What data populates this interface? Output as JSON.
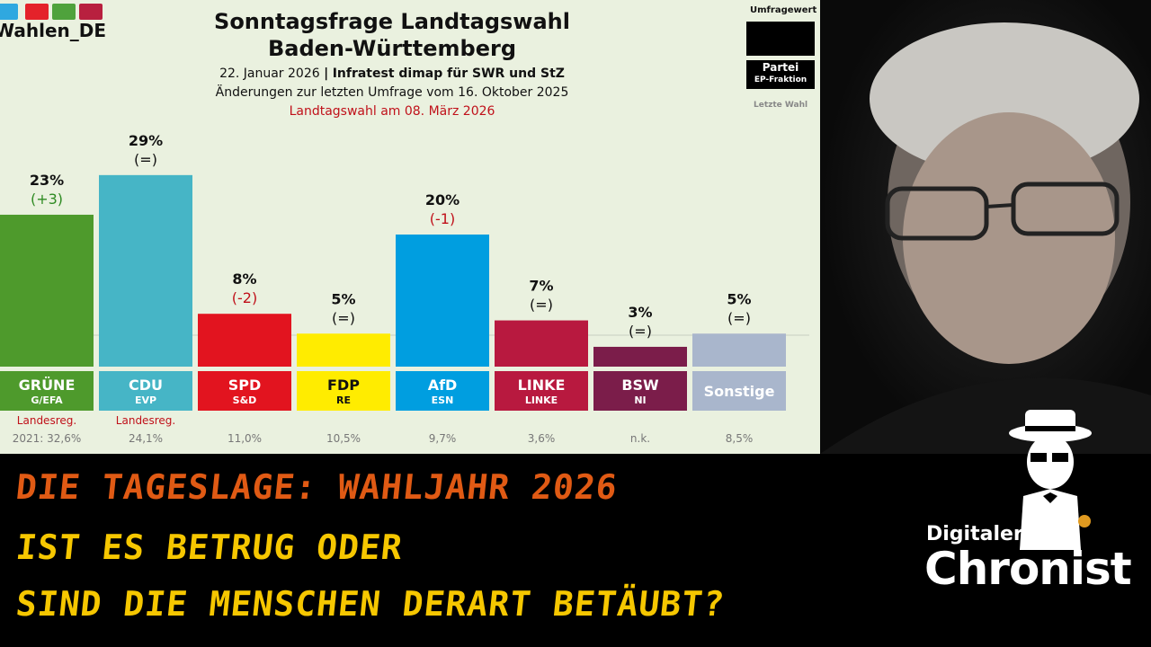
{
  "logo": {
    "text": "Wahlen_DE",
    "bar_colors": [
      "#2fa8e0",
      "#e4222a",
      "#4fa23c",
      "#b8203f"
    ]
  },
  "header": {
    "title_line1": "Sonntagsfrage Landtagswahl",
    "title_line2": "Baden-Württemberg",
    "date": "22. Januar 2026",
    "separator": "|",
    "pollster": "Infratest dimap für SWR und StZ",
    "changes_note": "Änderungen zur letzten Umfrage vom 16. Oktober 2025",
    "election_date": "Landtagswahl am 08. März 2026"
  },
  "legend": {
    "umfragewert": "Umfragewert",
    "partei": "Partei",
    "ep_fraktion": "EP-Fraktion",
    "letzte_wahl": "Letzte Wahl"
  },
  "chart_data": {
    "type": "bar",
    "title": "Sonntagsfrage Landtagswahl Baden-Württemberg",
    "ylim": [
      0,
      100
    ],
    "categories": [
      "GRÜNE",
      "CDU",
      "SPD",
      "FDP",
      "AfD",
      "LINKE",
      "BSW",
      "Sonstige"
    ],
    "values": [
      23,
      29,
      8,
      5,
      20,
      7,
      3,
      5
    ],
    "value_labels": [
      "23%",
      "29%",
      "8%",
      "5%",
      "20%",
      "7%",
      "3%",
      "5%"
    ],
    "change_labels": [
      "(+3)",
      "(=)",
      "(-2)",
      "(=)",
      "(-1)",
      "(=)",
      "(=)",
      "(=)"
    ],
    "change_values": [
      3,
      0,
      -2,
      0,
      -1,
      0,
      0,
      0
    ],
    "ep_fraktion": [
      "G/EFA",
      "EVP",
      "S&D",
      "RE",
      "ESN",
      "LINKE",
      "NI",
      ""
    ],
    "note": [
      "Landesreg.",
      "Landesreg.",
      "",
      "",
      "",
      "",
      "",
      ""
    ],
    "last_election": [
      "2021: 32,6%",
      "24,1%",
      "11,0%",
      "10,5%",
      "9,7%",
      "3,6%",
      "n.k.",
      "8,5%"
    ],
    "colors": [
      "#4e9a2c",
      "#46b5c6",
      "#e2141f",
      "#ffec00",
      "#009ee0",
      "#b8193f",
      "#7b1d4a",
      "#a9b6cc"
    ],
    "label_text_colors": [
      "#fff",
      "#fff",
      "#fff",
      "#111",
      "#fff",
      "#fff",
      "#fff",
      "#fff"
    ],
    "change_colors": {
      "up": "#2e8a22",
      "down": "#c0111a",
      "same": "#111"
    }
  },
  "banner": {
    "line1": "DIE TAGESLAGE: WAHLJAHR 2026",
    "line2": "IST ES BETRUG ODER",
    "line3": "SIND DIE MENSCHEN DERART BETÄUBT?"
  },
  "brand": {
    "line1": "Digitaler",
    "line2": "Chronist"
  }
}
